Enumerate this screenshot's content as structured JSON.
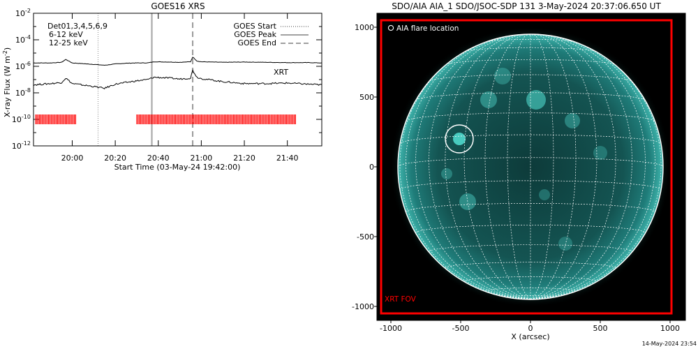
{
  "footer_date": "14-May-2024 23:54",
  "goes": {
    "title": "GOES16 XRS",
    "xlabel": "Start Time (03-May-24 19:42:00)",
    "ylabel_main": "X-ray Flux (W m",
    "ylabel_sup": "-2",
    "ylabel_close": ")",
    "det_label": "Det01,3,4,5,6,9",
    "energy_labels": [
      {
        "text": "6-12 keV",
        "color": "#ff00ff"
      },
      {
        "text": "12-25 keV",
        "color": "#00dd00"
      }
    ],
    "legend": [
      {
        "label": "GOES Start",
        "style": "dotted"
      },
      {
        "label": "GOES Peak",
        "style": "solid"
      },
      {
        "label": "GOES End",
        "style": "dashed"
      }
    ],
    "xrt_label": "XRT",
    "xrt_color": "#ff0000",
    "ytick_labels": [
      {
        "base": "10",
        "exp": "-2"
      },
      {
        "base": "10",
        "exp": "-4"
      },
      {
        "base": "10",
        "exp": "-6"
      },
      {
        "base": "10",
        "exp": "-8"
      },
      {
        "base": "10",
        "exp": "-10"
      },
      {
        "base": "10",
        "exp": "-12"
      }
    ],
    "xtick_labels": [
      "20:00",
      "20:20",
      "20:40",
      "21:00",
      "21:20",
      "21:40"
    ]
  },
  "aia": {
    "title": "SDO/AIA AIA_1 SDO/JSOC-SDP 131  3-May-2024 20:37:06.650 UT",
    "xlabel": "X (arcsec)",
    "ylabel": "",
    "flare_legend": "AIA flare location",
    "fov_label": "XRT FOV",
    "fov_color": "#ff0000",
    "xtick_labels": [
      "-1000",
      "-500",
      "0",
      "500",
      "1000"
    ],
    "ytick_labels": [
      "1000",
      "500",
      "0",
      "-500",
      "-1000"
    ]
  },
  "chart_data": [
    {
      "type": "line",
      "title": "GOES16 XRS",
      "xlabel": "Start Time (03-May-24 19:42:00)",
      "ylabel": "X-ray Flux (W m-2)",
      "y_scale": "log",
      "ylim": [
        1e-12,
        0.01
      ],
      "xlim": [
        "19:42",
        "21:56"
      ],
      "grid": false,
      "legend_position": "top-right",
      "series": [
        {
          "name": "",
          "color": "#000000",
          "x": [
            "19:42",
            "19:50",
            "19:55",
            "19:57",
            "20:00",
            "20:10",
            "20:15",
            "20:20",
            "20:25",
            "20:30",
            "20:35",
            "20:38",
            "20:45",
            "20:50",
            "20:55",
            "20:56",
            "20:58",
            "21:00",
            "21:10",
            "21:20",
            "21:30",
            "21:40",
            "21:50",
            "21:56"
          ],
          "y": [
            1.8e-06,
            1.8e-06,
            2e-06,
            3.3e-06,
            1.8e-06,
            1.4e-06,
            1.2e-06,
            1.5e-06,
            1.7e-06,
            1.8e-06,
            1.8e-06,
            2.2e-06,
            2.1e-06,
            2e-06,
            2.2e-06,
            5e-06,
            2.5e-06,
            2.2e-06,
            2e-06,
            2.1e-06,
            2e-06,
            1.9e-06,
            1.9e-06,
            1.8e-06
          ]
        },
        {
          "name": "",
          "color": "#000000",
          "x": [
            "19:42",
            "19:50",
            "19:55",
            "19:57",
            "20:00",
            "20:10",
            "20:15",
            "20:20",
            "20:25",
            "20:30",
            "20:35",
            "20:38",
            "20:45",
            "20:50",
            "20:55",
            "20:56",
            "20:58",
            "21:00",
            "21:10",
            "21:20",
            "21:30",
            "21:40",
            "21:50",
            "21:56"
          ],
          "y": [
            4e-08,
            5e-08,
            6e-08,
            1.3e-07,
            5e-08,
            3e-08,
            2.2e-08,
            4.5e-08,
            6e-08,
            8e-08,
            1e-07,
            1.5e-07,
            1.3e-07,
            1.1e-07,
            1.3e-07,
            5e-07,
            1.5e-07,
            1.2e-07,
            7e-08,
            5e-08,
            5e-08,
            5.5e-08,
            4.5e-08,
            4e-08
          ]
        }
      ],
      "vertical_markers": [
        {
          "label": "GOES Start",
          "time": "20:12",
          "style": "dotted"
        },
        {
          "label": "GOES Peak",
          "time": "20:37",
          "style": "solid"
        },
        {
          "label": "GOES End",
          "time": "20:56",
          "style": "dashed"
        }
      ],
      "xrt_coverage": [
        {
          "start": "19:43",
          "end": "20:02"
        },
        {
          "start": "20:30",
          "end": "21:44"
        }
      ],
      "xrt_level": 1e-10
    },
    {
      "type": "image",
      "title": "SDO/AIA AIA_1 SDO/JSOC-SDP 131  3-May-2024 20:37:06.650 UT",
      "xlabel": "X (arcsec)",
      "xlim": [
        -1100,
        1100
      ],
      "ylim": [
        -1100,
        1000
      ],
      "solar_radius_arcsec": 950,
      "flare_location": {
        "x": -510,
        "y": 200,
        "radius": 100
      },
      "xrt_fov": {
        "x0": -1070,
        "x1": 1010,
        "y0": -1050,
        "y1": 1050
      }
    }
  ]
}
